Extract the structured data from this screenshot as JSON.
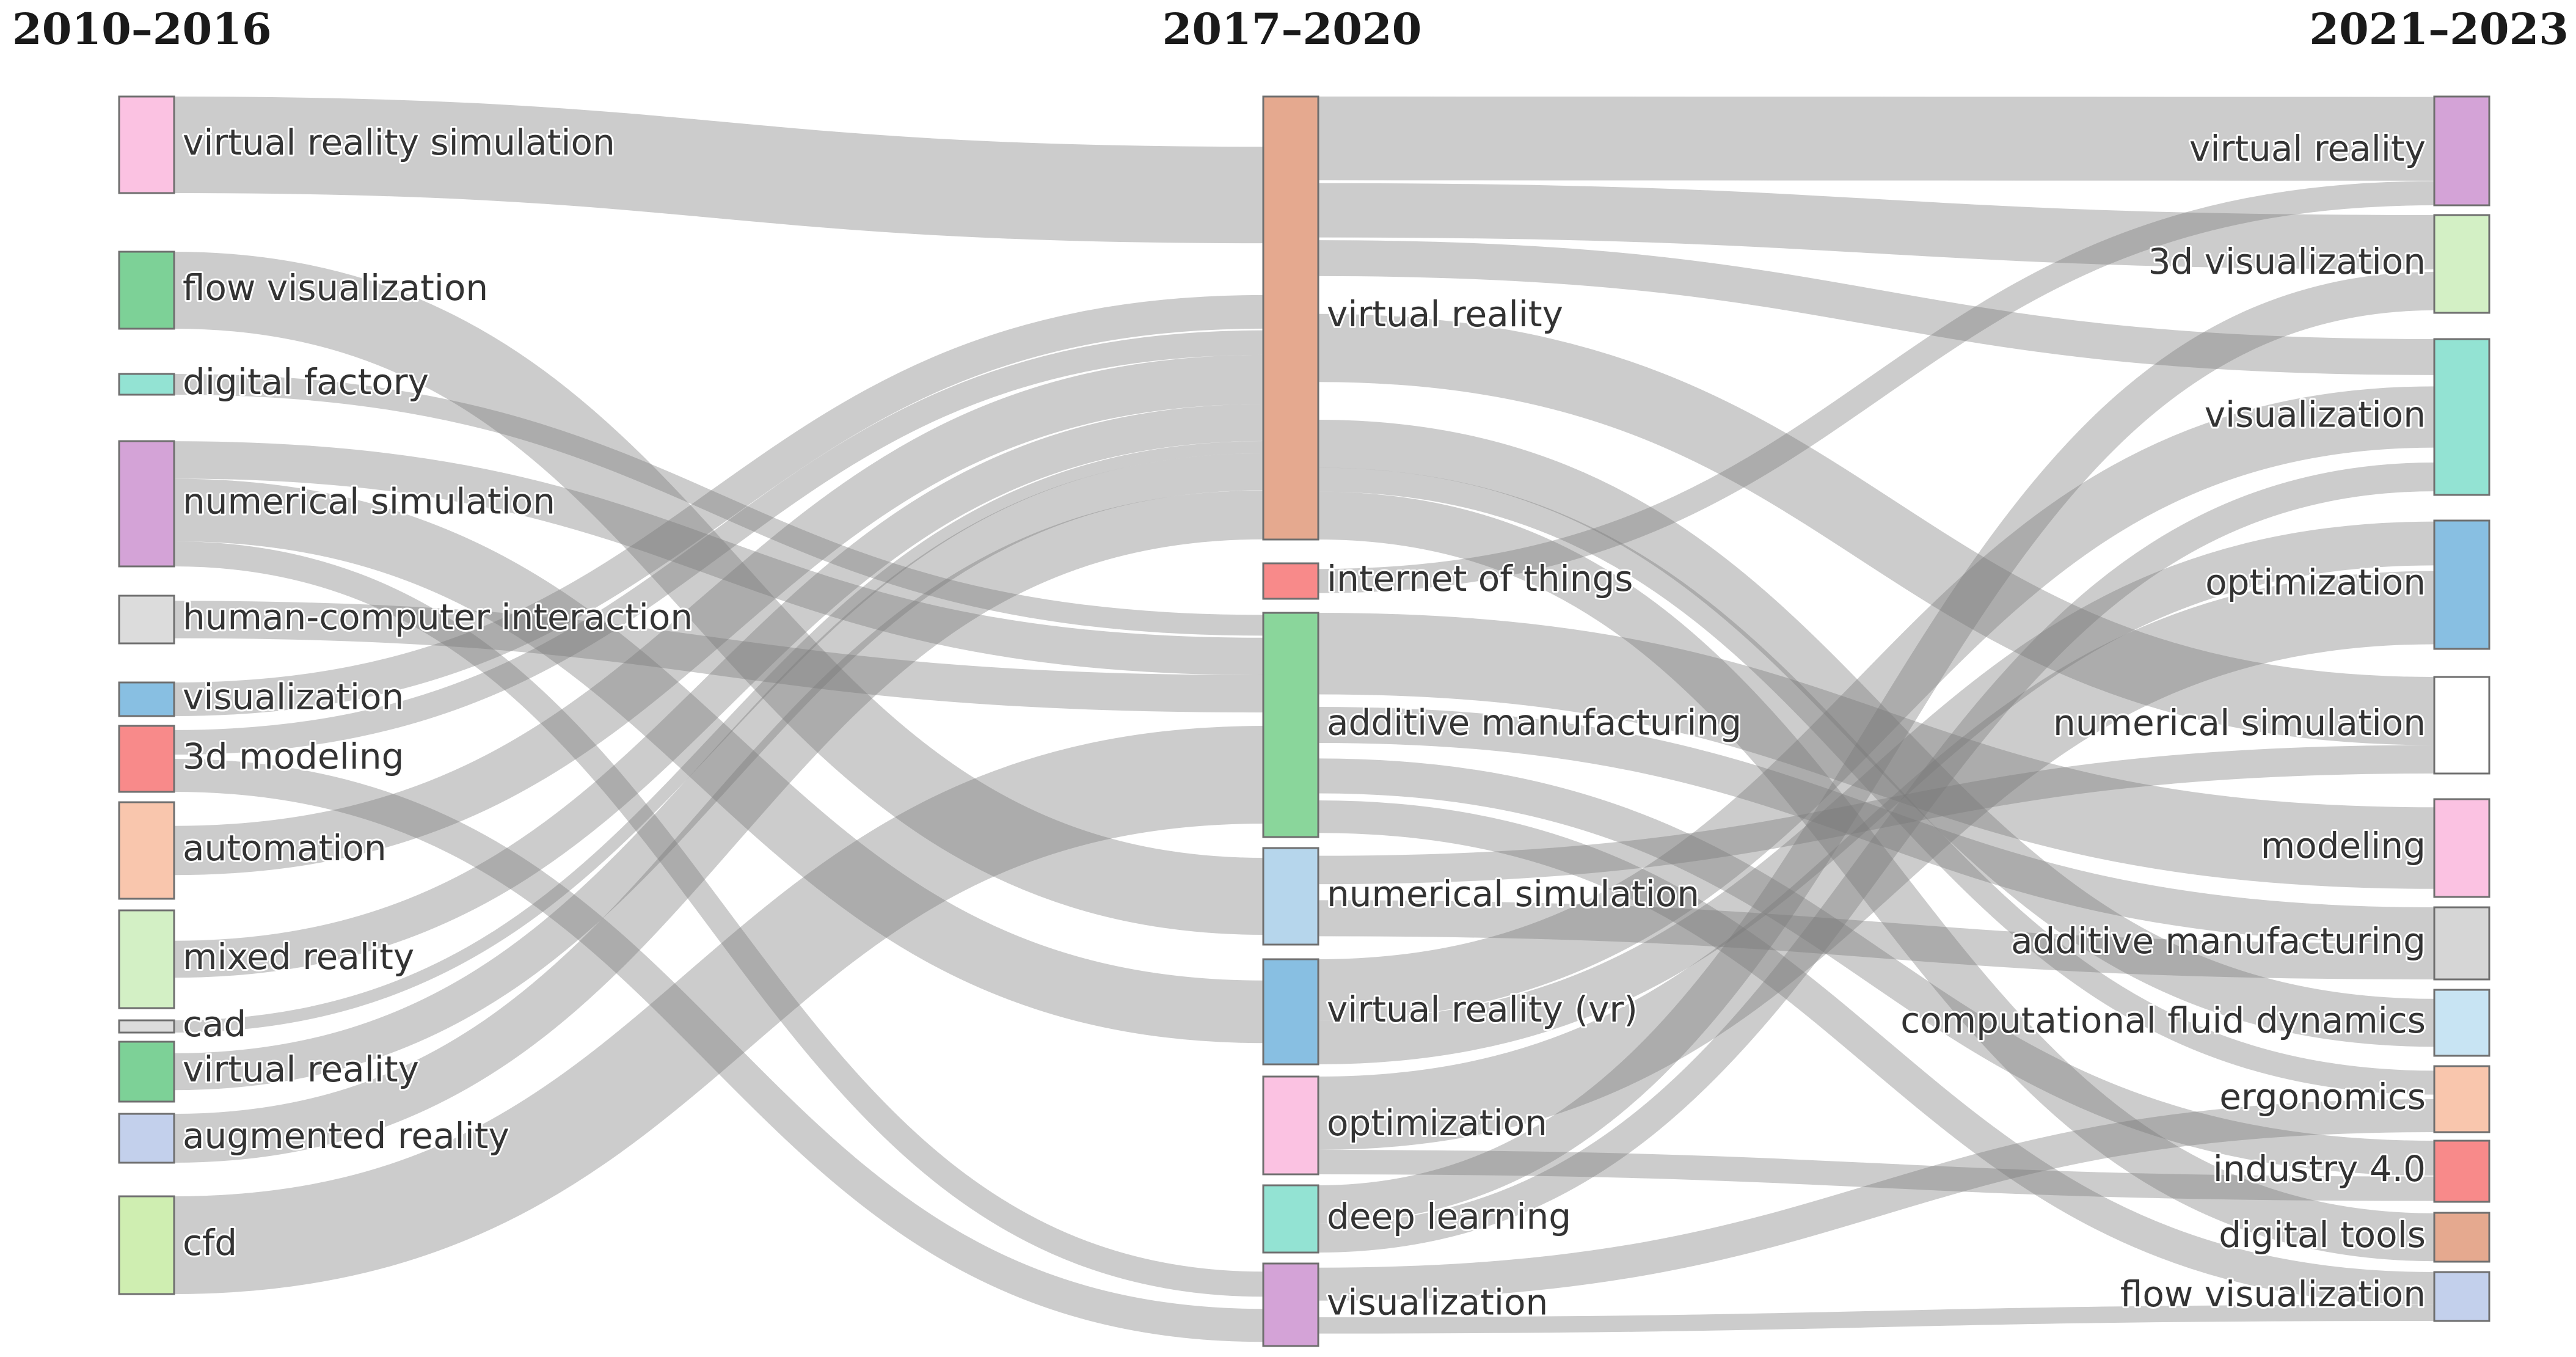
{
  "columns": [
    "2010–2016",
    "2017–2020",
    "2021–2023"
  ],
  "colors": {
    "link": "#7a7a7a",
    "node_border": "#6f6f6f",
    "pink": "#fbc2e2",
    "green": "#7dd197",
    "teal": "#93e3d3",
    "purple": "#d4a3d7",
    "gray": "#dcdcdc",
    "blue": "#88bfe2",
    "red": "#f88a8a",
    "peach": "#f9c6ad",
    "lightgreen": "#d3f0c5",
    "lavender": "#c3d0ec",
    "lime": "#cfeeb1",
    "salmon": "#e5a98f",
    "lightblue": "#c8e4f3",
    "white": "#ffffff"
  },
  "nodes": {
    "c0": [
      {
        "id": "L0",
        "label": "virtual reality simulation",
        "color": "#fbc2e2"
      },
      {
        "id": "L1",
        "label": "flow visualization",
        "color": "#7dd197"
      },
      {
        "id": "L2",
        "label": "digital factory",
        "color": "#93e3d3"
      },
      {
        "id": "L3",
        "label": "numerical simulation",
        "color": "#d4a3d7"
      },
      {
        "id": "L4",
        "label": "human-computer interaction",
        "color": "#dcdcdc"
      },
      {
        "id": "L5",
        "label": "visualization",
        "color": "#88bfe2"
      },
      {
        "id": "L6",
        "label": "3d modeling",
        "color": "#f88a8a"
      },
      {
        "id": "L7",
        "label": "automation",
        "color": "#f9c6ad"
      },
      {
        "id": "L8",
        "label": "mixed reality",
        "color": "#d3f0c5"
      },
      {
        "id": "L9",
        "label": "cad",
        "color": "#dcdcdc"
      },
      {
        "id": "L10",
        "label": "virtual reality",
        "color": "#7dd197"
      },
      {
        "id": "L11",
        "label": "augmented reality",
        "color": "#c3d0ec"
      },
      {
        "id": "L12",
        "label": "cfd",
        "color": "#cfeeb1"
      }
    ],
    "c1": [
      {
        "id": "M0",
        "label": "virtual reality",
        "color": "#e5a98f"
      },
      {
        "id": "M1",
        "label": "internet of things",
        "color": "#f88a8a"
      },
      {
        "id": "M2",
        "label": "additive manufacturing",
        "color": "#8ad69b"
      },
      {
        "id": "M3",
        "label": "numerical simulation",
        "color": "#b6d6ec"
      },
      {
        "id": "M4",
        "label": "virtual reality (vr)",
        "color": "#88bfe2"
      },
      {
        "id": "M5",
        "label": "optimization",
        "color": "#fbc2e2"
      },
      {
        "id": "M6",
        "label": "deep learning",
        "color": "#93e3d3"
      },
      {
        "id": "M7",
        "label": "visualization",
        "color": "#d4a3d7"
      }
    ],
    "c2": [
      {
        "id": "R0",
        "label": "virtual reality",
        "color": "#d4a3d7"
      },
      {
        "id": "R1",
        "label": "3d visualization",
        "color": "#d3f0c5"
      },
      {
        "id": "R2",
        "label": "visualization",
        "color": "#93e3d3"
      },
      {
        "id": "R3",
        "label": "optimization",
        "color": "#88bfe2"
      },
      {
        "id": "R4",
        "label": "numerical simulation",
        "color": "#ffffff"
      },
      {
        "id": "R5",
        "label": "modeling",
        "color": "#fbc2e2"
      },
      {
        "id": "R6",
        "label": "additive manufacturing",
        "color": "#d6d6d6"
      },
      {
        "id": "R7",
        "label": "computational fluid dynamics",
        "color": "#c8e4f3"
      },
      {
        "id": "R8",
        "label": "ergonomics",
        "color": "#f9c6ad"
      },
      {
        "id": "R9",
        "label": "industry 4.0",
        "color": "#f88a8a"
      },
      {
        "id": "R10",
        "label": "digital tools",
        "color": "#e5a98f"
      },
      {
        "id": "R11",
        "label": "flow visualization",
        "color": "#c3d0ec"
      }
    ]
  },
  "links": [
    {
      "source": "L0",
      "target": "M0",
      "value": 16
    },
    {
      "source": "L1",
      "target": "M3",
      "value": 12
    },
    {
      "source": "L2",
      "target": "M2",
      "value": 2
    },
    {
      "source": "L3",
      "target": "M2",
      "value": 3
    },
    {
      "source": "L3",
      "target": "M4",
      "value": 5
    },
    {
      "source": "L3",
      "target": "M7",
      "value": 2
    },
    {
      "source": "L4",
      "target": "M2",
      "value": 3
    },
    {
      "source": "L5",
      "target": "M0",
      "value": 3
    },
    {
      "source": "L6",
      "target": "M0",
      "value": 2
    },
    {
      "source": "L6",
      "target": "M7",
      "value": 2
    },
    {
      "source": "L7",
      "target": "M0",
      "value": 4
    },
    {
      "source": "L8",
      "target": "M0",
      "value": 3
    },
    {
      "source": "L9",
      "target": "M0",
      "value": 1
    },
    {
      "source": "L10",
      "target": "M0",
      "value": 3
    },
    {
      "source": "L11",
      "target": "M0",
      "value": 4
    },
    {
      "source": "L12",
      "target": "M2",
      "value": 10
    },
    {
      "source": "M0",
      "target": "R0",
      "value": 7
    },
    {
      "source": "M0",
      "target": "R1",
      "value": 5
    },
    {
      "source": "M0",
      "target": "R2",
      "value": 3
    },
    {
      "source": "M0",
      "target": "R4",
      "value": 12
    },
    {
      "source": "M0",
      "target": "R7",
      "value": 4
    },
    {
      "source": "M0",
      "target": "R8",
      "value": 2
    },
    {
      "source": "M0",
      "target": "R10",
      "value": 4
    },
    {
      "source": "M1",
      "target": "R0",
      "value": 2
    },
    {
      "source": "M2",
      "target": "R5",
      "value": 8
    },
    {
      "source": "M2",
      "target": "R6",
      "value": 6
    },
    {
      "source": "M2",
      "target": "R9",
      "value": 4
    },
    {
      "source": "M2",
      "target": "R11",
      "value": 4
    },
    {
      "source": "M3",
      "target": "R4",
      "value": 5
    },
    {
      "source": "M3",
      "target": "R6",
      "value": 6
    },
    {
      "source": "M4",
      "target": "R2",
      "value": 7
    },
    {
      "source": "M4",
      "target": "R3",
      "value": 5
    },
    {
      "source": "M5",
      "target": "R3",
      "value": 9
    },
    {
      "source": "M5",
      "target": "R9",
      "value": 3
    },
    {
      "source": "M6",
      "target": "R1",
      "value": 4
    },
    {
      "source": "M6",
      "target": "R2",
      "value": 3
    },
    {
      "source": "M7",
      "target": "R8",
      "value": 2
    },
    {
      "source": "M7",
      "target": "R11",
      "value": 2
    }
  ]
}
